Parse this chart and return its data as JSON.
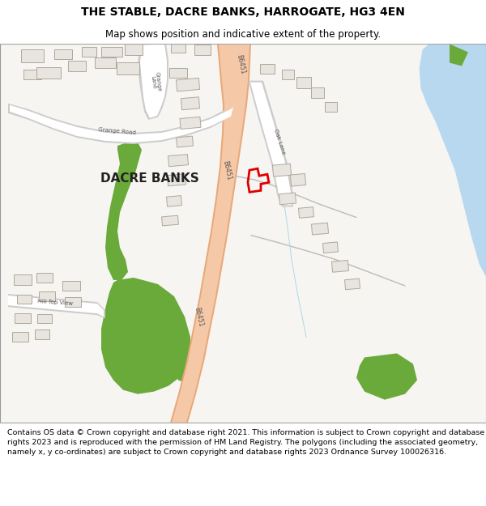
{
  "title_line1": "THE STABLE, DACRE BANKS, HARROGATE, HG3 4EN",
  "title_line2": "Map shows position and indicative extent of the property.",
  "footer": "Contains OS data © Crown copyright and database right 2021. This information is subject to Crown copyright and database rights 2023 and is reproduced with the permission of HM Land Registry. The polygons (including the associated geometry, namely x, y co-ordinates) are subject to Crown copyright and database rights 2023 Ordnance Survey 100026316.",
  "bg_color": "#f7f5f2",
  "road_main_color": "#f5c8a8",
  "road_main_border": "#e8a878",
  "road_minor_color": "#ffffff",
  "road_minor_border": "#cccccc",
  "green_color": "#6aaa3a",
  "blue_color": "#b8d8f0",
  "building_color": "#e8e4e0",
  "building_border": "#b0a898",
  "highlight_color": "#dd0000",
  "road_label_color": "#555555",
  "text_color": "#222222",
  "title_fontsize": 10,
  "subtitle_fontsize": 8.5,
  "footer_fontsize": 6.8
}
